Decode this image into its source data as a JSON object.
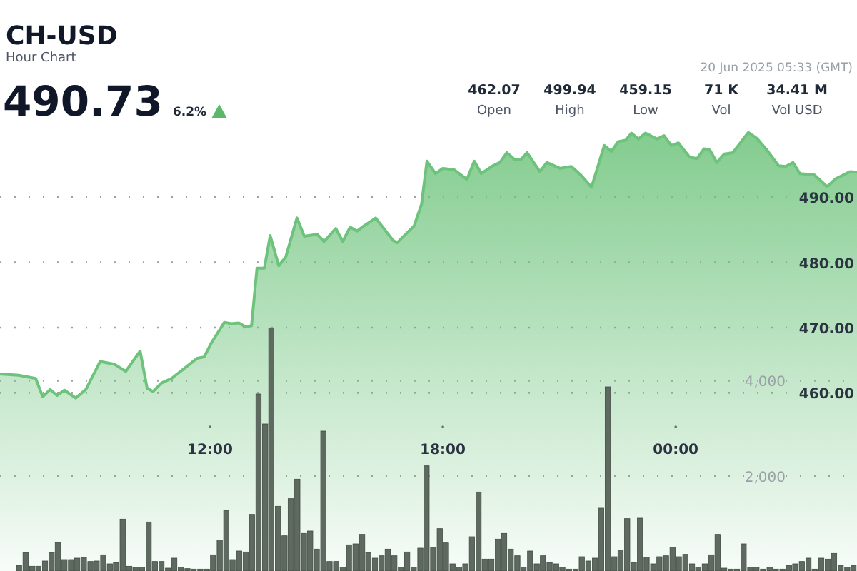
{
  "chart_data": {
    "type": "area",
    "title": "CH-USD",
    "subtitle": "Hour Chart",
    "annotations": [
      "490.73",
      "6.2%",
      "462.07",
      "Open",
      "499.94",
      "High",
      "459.15",
      "Low",
      "71 K",
      "Vol",
      "34.41 M",
      "Vol USD",
      "20 Jun 2025 05:33 (GMT)"
    ],
    "xlim": [
      6.59,
      28.67
    ],
    "xticks": [
      {
        "value": 12,
        "label": "12:00"
      },
      {
        "value": 18,
        "label": "18:00"
      },
      {
        "value": 24,
        "label": "00:00"
      }
    ],
    "ylim": [
      432.7,
      520.2
    ],
    "yticks": [
      {
        "value": 460,
        "label": "460.00"
      },
      {
        "value": 470,
        "label": "470.00"
      },
      {
        "value": 480,
        "label": "480.00"
      },
      {
        "value": 490,
        "label": "490.00"
      }
    ],
    "y2lim": [
      0,
      12000
    ],
    "y2ticks": [
      {
        "value": 2000,
        "label": "2,000"
      },
      {
        "value": 4000,
        "label": "4,000"
      }
    ],
    "grid": true,
    "series": [
      {
        "color": "#6dc37b",
        "x": [
          6.59,
          7.07,
          7.51,
          7.69,
          7.88,
          8.06,
          8.25,
          8.54,
          8.8,
          9.17,
          9.53,
          9.83,
          10.2,
          10.38,
          10.53,
          10.75,
          11.01,
          11.67,
          11.85,
          12.04,
          12.37,
          12.55,
          12.74,
          12.92,
          13.07,
          13.21,
          13.4,
          13.55,
          13.77,
          13.95,
          14.24,
          14.43,
          14.76,
          14.94,
          15.24,
          15.42,
          15.61,
          15.79,
          15.97,
          16.27,
          16.71,
          16.82,
          17.26,
          17.45,
          17.59,
          17.81,
          18.0,
          18.29,
          18.62,
          18.81,
          18.99,
          19.29,
          19.47,
          19.65,
          19.84,
          20.02,
          20.17,
          20.5,
          20.68,
          21.02,
          21.31,
          21.57,
          21.83,
          22.16,
          22.34,
          22.52,
          22.71,
          22.86,
          23.04,
          23.22,
          23.52,
          23.7,
          23.89,
          24.07,
          24.36,
          24.55,
          24.73,
          24.88,
          25.06,
          25.25,
          25.47,
          25.87,
          26.09,
          26.35,
          26.65,
          26.83,
          27.02,
          27.2,
          27.57,
          27.9,
          28.12,
          28.49,
          28.67
        ],
        "values": [
          462.9,
          462.7,
          462.2,
          459.4,
          460.5,
          459.6,
          460.4,
          459.2,
          460.5,
          464.8,
          464.4,
          463.3,
          466.4,
          460.7,
          460.2,
          461.5,
          462.2,
          465.3,
          465.5,
          467.7,
          470.8,
          470.6,
          470.7,
          470.1,
          470.3,
          479.1,
          479.1,
          484.1,
          479.5,
          480.8,
          486.8,
          484.0,
          484.3,
          483.2,
          485.2,
          483.2,
          485.4,
          484.8,
          485.6,
          486.8,
          483.4,
          483.0,
          485.6,
          488.9,
          495.5,
          493.6,
          494.4,
          494.2,
          492.7,
          495.5,
          493.6,
          494.8,
          495.3,
          496.8,
          495.8,
          495.8,
          496.8,
          493.9,
          495.3,
          494.4,
          494.7,
          493.3,
          491.5,
          497.9,
          497.0,
          498.5,
          498.7,
          499.8,
          498.9,
          499.8,
          498.9,
          499.4,
          497.9,
          498.3,
          496.1,
          495.9,
          497.4,
          497.2,
          495.3,
          496.6,
          496.8,
          499.9,
          499.0,
          497.2,
          494.8,
          494.7,
          495.3,
          493.6,
          493.4,
          491.6,
          492.8,
          493.9,
          493.8
        ]
      },
      {
        "type": "bar",
        "axis": "y2",
        "color": "#5e6a5f",
        "x": [
          7.08,
          7.25,
          7.42,
          7.58,
          7.75,
          7.92,
          8.08,
          8.25,
          8.42,
          8.58,
          8.75,
          8.92,
          9.08,
          9.25,
          9.42,
          9.58,
          9.75,
          9.92,
          10.08,
          10.25,
          10.42,
          10.58,
          10.75,
          10.92,
          11.08,
          11.25,
          11.42,
          11.58,
          11.75,
          11.92,
          12.08,
          12.25,
          12.42,
          12.58,
          12.75,
          12.92,
          13.08,
          13.25,
          13.42,
          13.58,
          13.75,
          13.92,
          14.08,
          14.25,
          14.42,
          14.58,
          14.75,
          14.92,
          15.08,
          15.25,
          15.42,
          15.58,
          15.75,
          15.92,
          16.08,
          16.25,
          16.42,
          16.58,
          16.75,
          16.92,
          17.08,
          17.25,
          17.42,
          17.58,
          17.75,
          17.92,
          18.08,
          18.25,
          18.42,
          18.58,
          18.75,
          18.92,
          19.08,
          19.25,
          19.42,
          19.58,
          19.75,
          19.92,
          20.08,
          20.25,
          20.42,
          20.58,
          20.75,
          20.92,
          21.08,
          21.25,
          21.42,
          21.58,
          21.75,
          21.92,
          22.08,
          22.25,
          22.42,
          22.58,
          22.75,
          22.92,
          23.08,
          23.25,
          23.42,
          23.58,
          23.75,
          23.92,
          24.08,
          24.25,
          24.42,
          24.58,
          24.75,
          24.92,
          25.08,
          25.25,
          25.42,
          25.58,
          25.75,
          25.92,
          26.08,
          26.25,
          26.42,
          26.58,
          26.75,
          26.92,
          27.08,
          27.25,
          27.42,
          27.58,
          27.75,
          27.92,
          28.08,
          28.25,
          28.42,
          28.58
        ],
        "values": [
          120,
          390,
          100,
          100,
          210,
          390,
          600,
          240,
          240,
          270,
          280,
          200,
          210,
          340,
          150,
          180,
          1090,
          100,
          80,
          80,
          1030,
          200,
          200,
          60,
          270,
          80,
          50,
          40,
          40,
          40,
          340,
          650,
          1270,
          240,
          420,
          400,
          1190,
          3720,
          3090,
          5110,
          1360,
          740,
          1520,
          1930,
          790,
          840,
          460,
          2940,
          200,
          200,
          80,
          550,
          570,
          770,
          390,
          270,
          320,
          460,
          320,
          80,
          400,
          80,
          480,
          2210,
          500,
          890,
          590,
          150,
          80,
          150,
          720,
          1660,
          250,
          250,
          670,
          790,
          460,
          320,
          80,
          420,
          150,
          320,
          180,
          150,
          80,
          40,
          40,
          300,
          210,
          270,
          1320,
          3870,
          300,
          440,
          1100,
          180,
          1110,
          290,
          150,
          300,
          320,
          500,
          300,
          350,
          150,
          80,
          150,
          340,
          770,
          60,
          40,
          40,
          570,
          80,
          80,
          40,
          80,
          40,
          40,
          120,
          150,
          200,
          270,
          40,
          270,
          250,
          370,
          120,
          80,
          120
        ]
      }
    ]
  }
}
